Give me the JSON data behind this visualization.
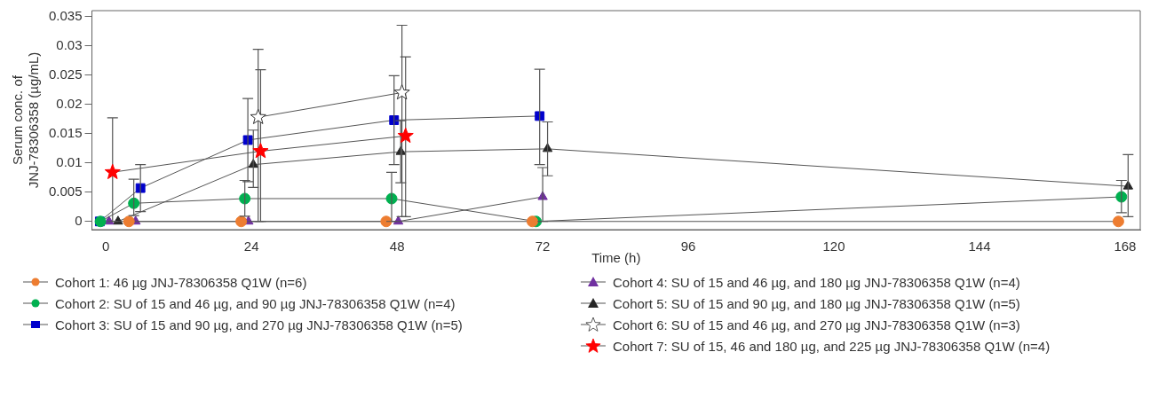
{
  "chart_data": {
    "type": "line",
    "xlabel": "Time (h)",
    "ylabel": "Serum conc. of\nJNJ-78306358 (µg/mL)",
    "xlim": [
      -2.3,
      170.5
    ],
    "ylim": [
      -0.0014,
      0.036
    ],
    "xticks": [
      0,
      24,
      48,
      72,
      96,
      120,
      144,
      168
    ],
    "yticks": [
      0,
      0.005,
      0.01,
      0.015,
      0.02,
      0.025,
      0.03,
      0.035
    ],
    "grid": false,
    "legend": "bottom",
    "line_style": "solid",
    "series": [
      {
        "name": "Cohort 1: 46 µg JNJ-78306358 Q1W (n=6)",
        "color": "#ed7d31",
        "marker": "circle",
        "x": [
          3.8,
          22.3,
          46.2,
          70.3,
          166.9
        ],
        "values": [
          0,
          0,
          0,
          0,
          0
        ]
      },
      {
        "name": "Cohort 2: SU of 15 and 46 µg, and 90 µg JNJ-78306358 Q1W (n=4)",
        "color": "#00b050",
        "marker": "circle",
        "x": [
          -0.9,
          4.6,
          22.9,
          47.1,
          70.9,
          167.4
        ],
        "values": [
          0,
          0.0031,
          0.0039,
          0.0039,
          0,
          0.0042
        ],
        "errors": [
          null,
          [
            0.001,
            0.0072
          ],
          [
            0.0009,
            0.007
          ],
          [
            0,
            0.0084
          ],
          null,
          [
            0.0015,
            0.007
          ]
        ]
      },
      {
        "name": "Cohort 3: SU of 15 and 90 µg, and 270 µg JNJ-78306358 Q1W (n=5)",
        "color": "#0000cc",
        "marker": "square",
        "x": [
          -1,
          5.7,
          23.4,
          47.5,
          71.5
        ],
        "values": [
          0,
          0.0057,
          0.0139,
          0.0173,
          0.018
        ],
        "errors": [
          null,
          [
            0.0017,
            0.0097
          ],
          [
            0.0068,
            0.021
          ],
          [
            0.0097,
            0.0249
          ],
          [
            0.0097,
            0.026
          ]
        ]
      },
      {
        "name": "Cohort 4: SU of 15 and 46 µg, and 180 µg JNJ-78306358 Q1W (n=4)",
        "color": "#7030a0",
        "marker": "triangle",
        "x": [
          0.5,
          4.9,
          23.5,
          48.2,
          72
        ],
        "values": [
          0,
          0,
          0,
          0,
          0.0042
        ],
        "errors": [
          null,
          null,
          null,
          null,
          [
            0,
            0.0092
          ]
        ]
      },
      {
        "name": "Cohort 5: SU of 15 and 90 µg, and 180 µg JNJ-78306358 Q1W (n=5)",
        "color": "#262626",
        "marker": "triangle",
        "x": [
          2,
          24.3,
          48.6,
          72.8,
          168.5
        ],
        "values": [
          0,
          0.0097,
          0.0119,
          0.0124,
          0.006
        ],
        "errors": [
          null,
          [
            0.0058,
            0.0156
          ],
          [
            0.0066,
            0.0172
          ],
          [
            0.0078,
            0.017
          ],
          [
            0.0008,
            0.0114
          ]
        ]
      },
      {
        "name": "Cohort 6: SU of 15 and 46 µg, and 270 µg JNJ-78306358 Q1W (n=3)",
        "color": "#ffffff",
        "marker": "star",
        "x": [
          25.1,
          48.8
        ],
        "values": [
          0.0178,
          0.022
        ],
        "errors": [
          [
            0,
            0.0294
          ],
          [
            0.0008,
            0.0335
          ]
        ]
      },
      {
        "name": "Cohort 7: SU of 15, 46 and 180 µg, and 225 µg JNJ-78306358 Q1W (n=4)",
        "color": "#ff0000",
        "marker": "star",
        "x": [
          1.1,
          25.5,
          49.4
        ],
        "values": [
          0.0084,
          0.012,
          0.0146
        ],
        "errors": [
          [
            0,
            0.0177
          ],
          [
            0,
            0.0259
          ],
          [
            0.0008,
            0.0281
          ]
        ]
      }
    ]
  }
}
